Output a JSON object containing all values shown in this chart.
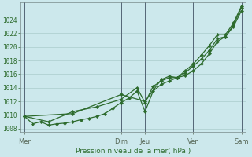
{
  "xlabel": "Pression niveau de la mer( hPa )",
  "bg_color": "#cce8ec",
  "grid_color": "#aacccc",
  "line_color": "#2d6b2d",
  "ylim": [
    1007.5,
    1026.5
  ],
  "yticks": [
    1008,
    1010,
    1012,
    1014,
    1016,
    1018,
    1020,
    1022,
    1024
  ],
  "day_labels": [
    "Mer",
    "Dim",
    "Jeu",
    "Ven",
    "Sam"
  ],
  "day_positions": [
    0,
    24,
    30,
    42,
    54
  ],
  "xlim": [
    -1,
    55
  ],
  "vlines": [
    0,
    24,
    30,
    42,
    54
  ],
  "series1_x": [
    0,
    2,
    4,
    6,
    8,
    10,
    12,
    14,
    16,
    18,
    20,
    22,
    24,
    26,
    28,
    30,
    32,
    34,
    36,
    38,
    40,
    42,
    44,
    46,
    48,
    50,
    52,
    54
  ],
  "series1_y": [
    1009.8,
    1008.7,
    1009.0,
    1008.5,
    1008.7,
    1008.8,
    1009.0,
    1009.3,
    1009.5,
    1009.8,
    1010.2,
    1011.0,
    1011.8,
    1012.5,
    1013.5,
    1010.5,
    1013.5,
    1014.5,
    1015.0,
    1015.5,
    1015.8,
    1016.5,
    1017.5,
    1019.0,
    1020.8,
    1021.5,
    1023.0,
    1025.3
  ],
  "series2_x": [
    0,
    6,
    12,
    18,
    24,
    28,
    30,
    32,
    34,
    36,
    38,
    40,
    42,
    44,
    46,
    48,
    50,
    52,
    54
  ],
  "series2_y": [
    1009.8,
    1009.0,
    1010.5,
    1011.2,
    1012.3,
    1014.0,
    1011.8,
    1014.2,
    1015.0,
    1015.5,
    1015.5,
    1016.2,
    1017.2,
    1018.2,
    1019.5,
    1021.2,
    1021.5,
    1023.2,
    1025.8
  ],
  "series3_x": [
    0,
    12,
    24,
    30,
    34,
    36,
    38,
    40,
    42,
    44,
    46,
    48,
    50,
    52,
    54
  ],
  "series3_y": [
    1009.8,
    1010.2,
    1013.0,
    1012.0,
    1015.2,
    1015.7,
    1015.5,
    1016.5,
    1017.5,
    1018.8,
    1020.2,
    1021.8,
    1021.8,
    1023.5,
    1026.0
  ]
}
